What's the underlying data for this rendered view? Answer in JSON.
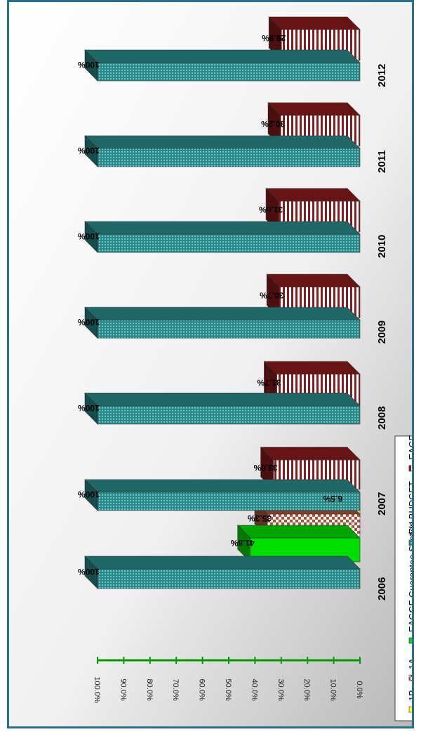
{
  "chart_data": {
    "type": "bar",
    "orientation": "rotated-90-clockwise",
    "title": "",
    "xlabel": "",
    "ylabel": "",
    "ylim": [
      0,
      100
    ],
    "yticks": [
      "0.0%",
      "10.0%",
      "20.0%",
      "30.0%",
      "40.0%",
      "50.0%",
      "60.0%",
      "70.0%",
      "80.0%",
      "90.0%",
      "100.0%"
    ],
    "categories": [
      "2006",
      "2007",
      "2008",
      "2009",
      "2010",
      "2011",
      "2012"
    ],
    "series": [
      {
        "name": "1B",
        "color": "#ffff00",
        "pattern": "solid",
        "values": [
          6.5,
          null,
          null,
          null,
          null,
          null,
          null
        ],
        "labels": [
          "6.5%",
          "",
          "",
          "",
          "",
          "",
          ""
        ]
      },
      {
        "name": "1A",
        "color": "#b0533a",
        "pattern": "checker",
        "values": [
          35.3,
          null,
          null,
          null,
          null,
          null,
          null
        ],
        "labels": [
          "35.3%",
          "",
          "",
          "",
          "",
          "",
          ""
        ]
      },
      {
        "name": "EAGGF Guarantee Section",
        "color": "#00dd00",
        "pattern": "solid",
        "values": [
          41.8,
          null,
          null,
          null,
          null,
          null,
          null
        ],
        "labels": [
          "41.8%",
          "",
          "",
          "",
          "",
          "",
          ""
        ]
      },
      {
        "name": "EAGF",
        "color": "#8b1a1a",
        "pattern": "stripes",
        "values": [
          null,
          33.0,
          31.7,
          30.7,
          31.0,
          30.2,
          29.9
        ],
        "labels": [
          "",
          "33.0%",
          "31.7%",
          "30.7%",
          "31.0%",
          "30.2%",
          "29.9%"
        ]
      },
      {
        "name": "EU BUDGET",
        "color": "#2a8a8a",
        "pattern": "dots",
        "values": [
          100,
          100,
          100,
          100,
          100,
          100,
          100
        ],
        "labels": [
          "100%",
          "100%",
          "100%",
          "100%",
          "100%",
          "100%",
          "100%"
        ]
      }
    ],
    "legend": {
      "position": "bottom",
      "items": [
        "1B",
        "1A",
        "EAGGF Guarantee Section",
        "EU BUDGET",
        "EAGF"
      ]
    },
    "grid": false
  }
}
